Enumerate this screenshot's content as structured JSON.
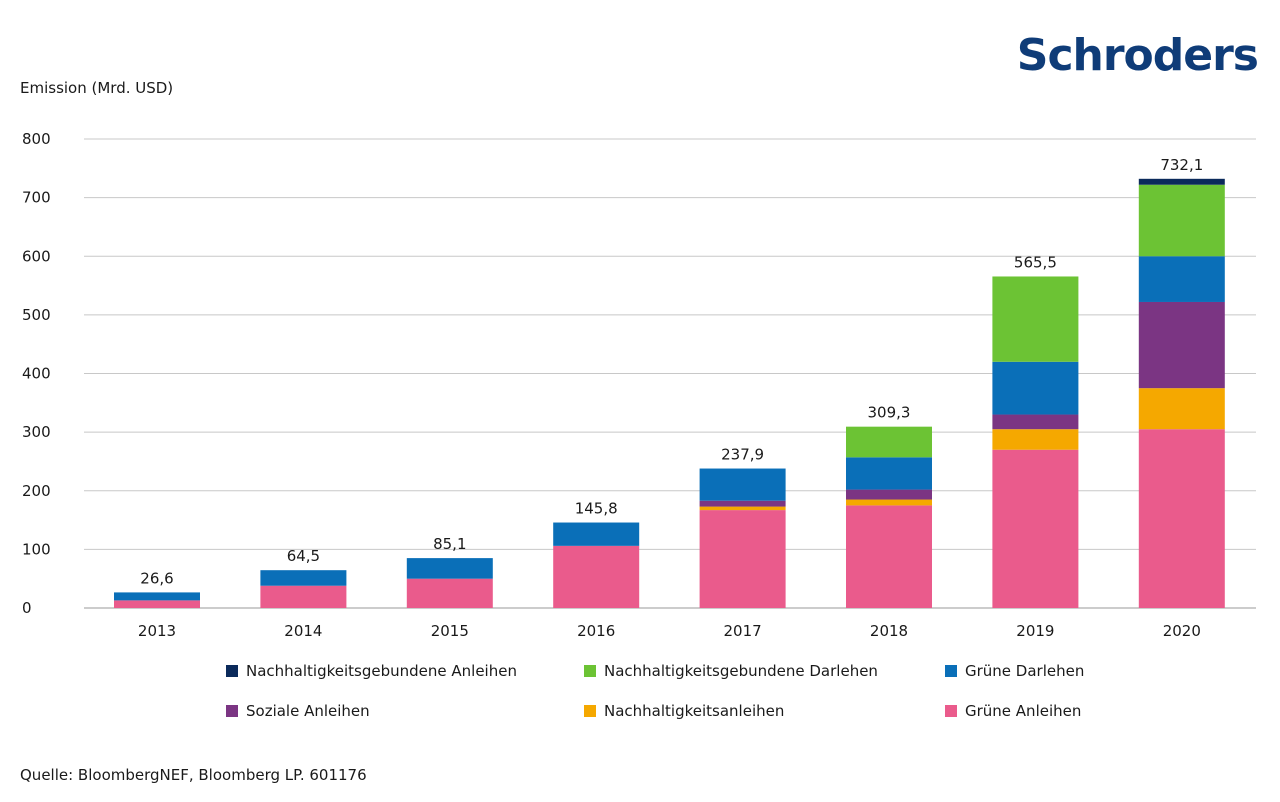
{
  "brand": "Schroders",
  "source": "Quelle: BloombergNEF, Bloomberg LP. 601176",
  "chart_data": {
    "type": "bar",
    "stacked": true,
    "ylabel": "Emission (Mrd. USD)",
    "ylim": [
      0,
      800
    ],
    "yticks": [
      "0",
      "100",
      "200",
      "300",
      "400",
      "500",
      "600",
      "700",
      "800"
    ],
    "grid": true,
    "legend_position": "bottom",
    "categories": [
      "2013",
      "2014",
      "2015",
      "2016",
      "2017",
      "2018",
      "2019",
      "2020"
    ],
    "totals": [
      "26,6",
      "64,5",
      "85,1",
      "145,8",
      "237,9",
      "309,3",
      "565,5",
      "732,1"
    ],
    "series": [
      {
        "name": "Grüne Anleihen",
        "color": "#ea5b8c",
        "values": [
          13,
          38,
          50,
          106,
          167,
          175,
          270,
          305
        ]
      },
      {
        "name": "Nachhaltigkeitsanleihen",
        "color": "#f5a800",
        "values": [
          0,
          0,
          0,
          0,
          6,
          10,
          35,
          70
        ]
      },
      {
        "name": "Soziale Anleihen",
        "color": "#7b3583",
        "values": [
          0,
          0,
          0,
          0,
          10,
          17,
          25,
          147
        ]
      },
      {
        "name": "Grüne Darlehen",
        "color": "#0a6fb8",
        "values": [
          13.6,
          26.5,
          35.1,
          39.8,
          54.9,
          55,
          90,
          78
        ]
      },
      {
        "name": "Nachhaltigkeitsgebundene Darlehen",
        "color": "#6cc334",
        "values": [
          0,
          0,
          0,
          0,
          0,
          52.3,
          145.5,
          122
        ]
      },
      {
        "name": "Nachhaltigkeitsgebundene Anleihen",
        "color": "#0b2a5b",
        "values": [
          0,
          0,
          0,
          0,
          0,
          0,
          0,
          10.1
        ]
      }
    ]
  }
}
